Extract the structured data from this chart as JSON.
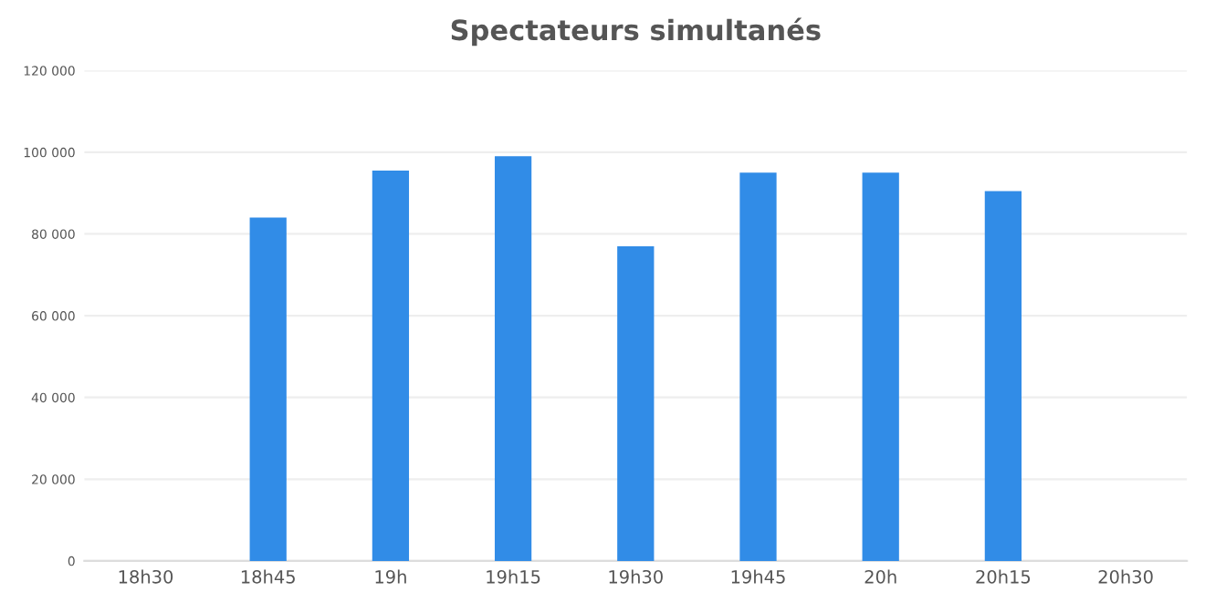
{
  "chart_data": {
    "type": "bar",
    "title": "Spectateurs simultanés",
    "categories": [
      "18h30",
      "18h45",
      "19h",
      "19h15",
      "19h30",
      "19h45",
      "20h",
      "20h15",
      "20h30"
    ],
    "values": [
      null,
      84000,
      95500,
      99000,
      77000,
      95000,
      95000,
      90500,
      null
    ],
    "color": "#318ce7",
    "ylim": [
      0,
      120000
    ],
    "yticks": [
      {
        "value": 0,
        "label": "0"
      },
      {
        "value": 20000,
        "label": "20 000"
      },
      {
        "value": 40000,
        "label": "40 000"
      },
      {
        "value": 60000,
        "label": "60 000"
      },
      {
        "value": 80000,
        "label": "80 000"
      },
      {
        "value": 100000,
        "label": "100 000"
      },
      {
        "value": 120000,
        "label": "120 000"
      }
    ],
    "grid": "y"
  }
}
